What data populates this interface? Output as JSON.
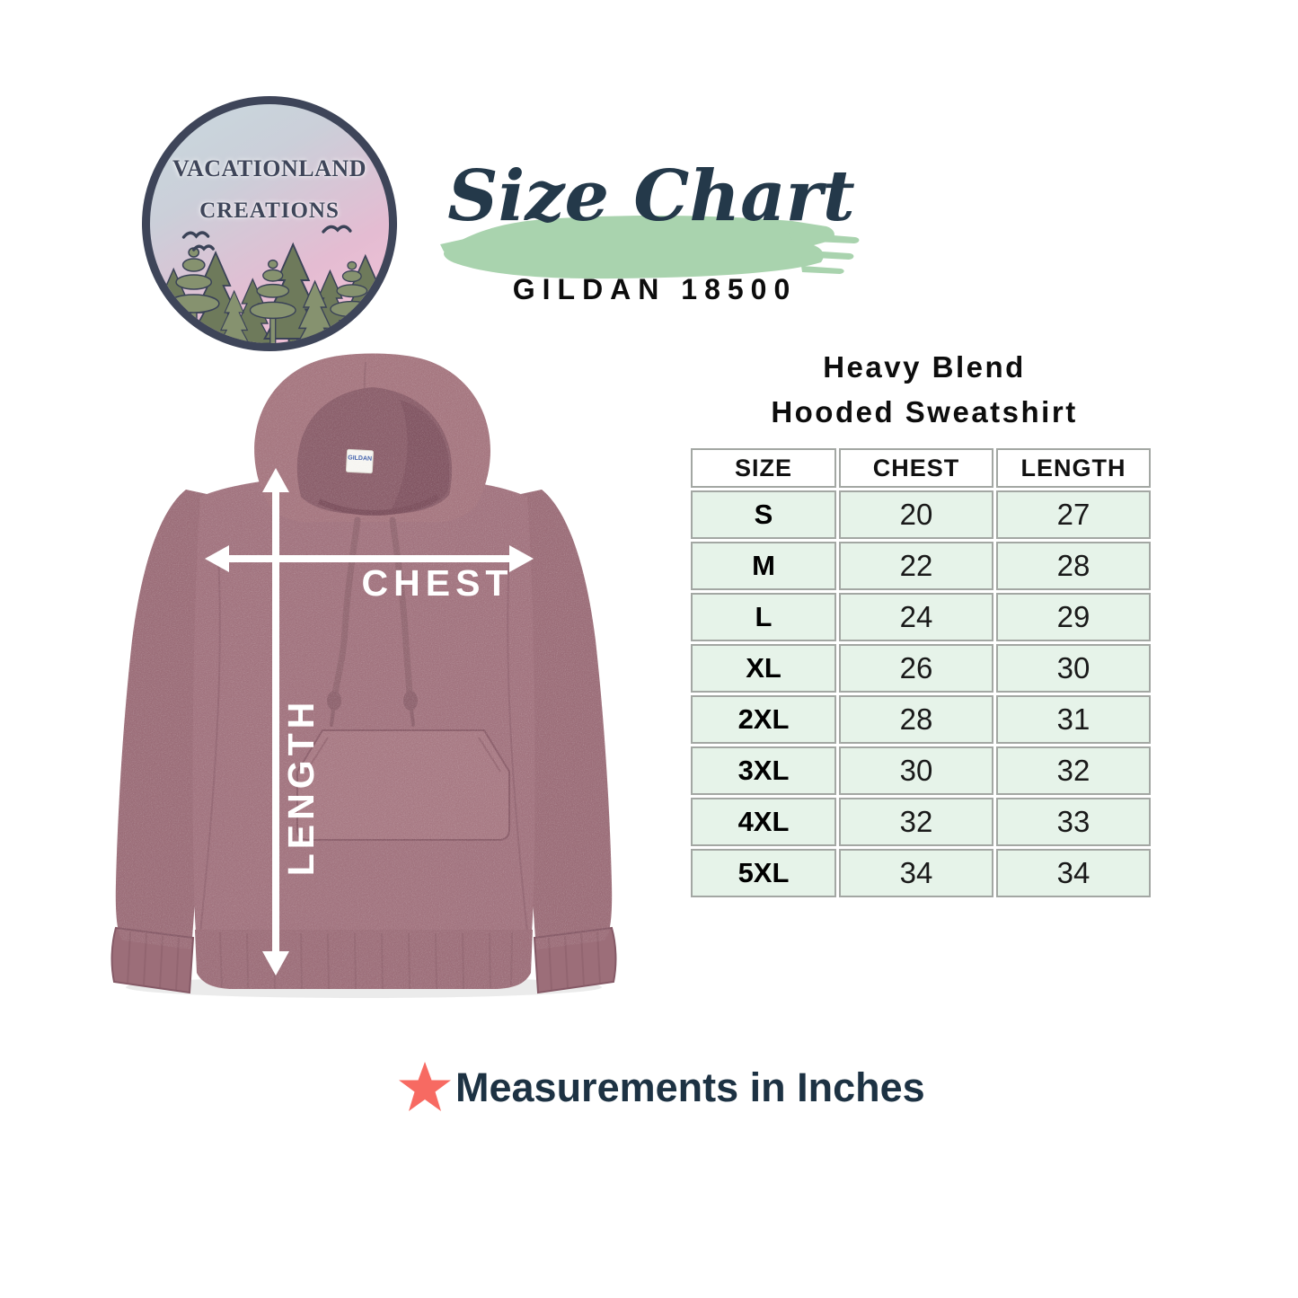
{
  "logo": {
    "name_line1": "VACATIONLAND",
    "name_line2": "CREATIONS"
  },
  "title": {
    "heading": "Size Chart",
    "model": "GILDAN 18500"
  },
  "product": {
    "line1": "Heavy Blend",
    "line2": "Hooded Sweatshirt"
  },
  "diagram": {
    "chest_label": "CHEST",
    "length_label": "LENGTH",
    "brand_tag": "GILDAN"
  },
  "chart_data": {
    "type": "table",
    "title": "Size Chart",
    "subtitle": "Gildan 18500 Heavy Blend Hooded Sweatshirt",
    "units": "inches",
    "columns": [
      "SIZE",
      "CHEST",
      "LENGTH"
    ],
    "rows": [
      [
        "S",
        20,
        27
      ],
      [
        "M",
        22,
        28
      ],
      [
        "L",
        24,
        29
      ],
      [
        "XL",
        26,
        30
      ],
      [
        "2XL",
        28,
        31
      ],
      [
        "3XL",
        30,
        32
      ],
      [
        "4XL",
        32,
        33
      ],
      [
        "5XL",
        34,
        34
      ]
    ]
  },
  "note": {
    "text": "Measurements in Inches"
  },
  "colors": {
    "brush_green": "#a9d3ae",
    "table_row_mint": "#e6f3e9",
    "table_border_gray": "#a3a7a3",
    "navy": "#24394a",
    "hoodie_maroon": "#a1737e",
    "star_red": "#f76a62",
    "background": "#ffffff"
  }
}
